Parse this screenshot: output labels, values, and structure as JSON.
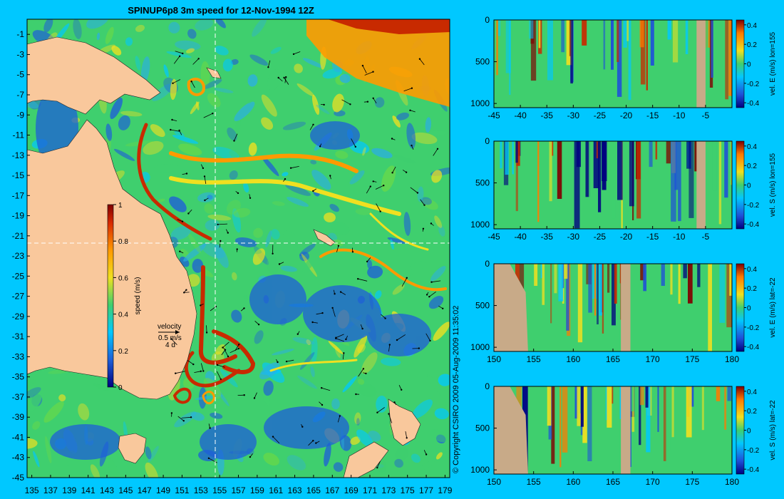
{
  "colors": {
    "background": "#00c8ff",
    "land": "#f9c89c",
    "panel_land": "#c8aa88",
    "ocean_low": "#1e5fd8",
    "ocean_mid": "#3fcf6e",
    "speed_high": "#c82a00",
    "guide_line": "#ffffff"
  },
  "chart_data": [
    {
      "type": "heatmap",
      "panel": "map",
      "title": "SPINUP6p8 3m speed for 12-Nov-1994 12Z",
      "xlabel": "",
      "ylabel": "",
      "x_ticks": [
        "135",
        "137",
        "139",
        "141",
        "143",
        "145",
        "147",
        "149",
        "151",
        "153",
        "155",
        "157",
        "159",
        "161",
        "163",
        "165",
        "167",
        "169",
        "171",
        "173",
        "175",
        "177",
        "179"
      ],
      "y_ticks": [
        "-1",
        "-3",
        "-5",
        "-7",
        "-9",
        "-11",
        "-13",
        "-15",
        "-17",
        "-19",
        "-21",
        "-23",
        "-25",
        "-27",
        "-29",
        "-31",
        "-33",
        "-35",
        "-37",
        "-39",
        "-41",
        "-43",
        "-45"
      ],
      "xlim": [
        134.5,
        179.5
      ],
      "ylim": [
        -45,
        0.5
      ],
      "section_lon": 155,
      "section_lat": -22,
      "colorbar": {
        "label": "speed (m/s)",
        "ticks": [
          "1",
          "0.8",
          "0.6",
          "0.4",
          "0.2",
          "0"
        ],
        "range": [
          0,
          1
        ]
      },
      "velocity_key": {
        "label": "velocity",
        "scale": "0.5 m/s",
        "duration": "4 d"
      }
    },
    {
      "type": "heatmap",
      "panel": "section",
      "ylabel": "vel. E (m/s) lon=155",
      "x_ticks": [
        "-45",
        "-40",
        "-35",
        "-30",
        "-25",
        "-20",
        "-15",
        "-10",
        "-5"
      ],
      "xlim": [
        -45,
        0
      ],
      "y_ticks": [
        "0",
        "500",
        "1000"
      ],
      "ylim": [
        0,
        1050
      ],
      "colorbar_ticks": [
        "0.4",
        "0.2",
        "0",
        "-0.2",
        "-0.4"
      ],
      "crange": [
        -0.45,
        0.45
      ]
    },
    {
      "type": "heatmap",
      "panel": "section",
      "ylabel": "vel. S (m/s) lon=155",
      "x_ticks": [
        "-45",
        "-40",
        "-35",
        "-30",
        "-25",
        "-20",
        "-15",
        "-10",
        "-5"
      ],
      "xlim": [
        -45,
        0
      ],
      "y_ticks": [
        "0",
        "500",
        "1000"
      ],
      "ylim": [
        0,
        1050
      ],
      "colorbar_ticks": [
        "0.4",
        "0.2",
        "0",
        "-0.2",
        "-0.4"
      ],
      "crange": [
        -0.45,
        0.45
      ]
    },
    {
      "type": "heatmap",
      "panel": "section",
      "ylabel": "vel. E (m/s) lat=-22",
      "x_ticks": [
        "150",
        "155",
        "160",
        "165",
        "170",
        "175",
        "180"
      ],
      "xlim": [
        150,
        180
      ],
      "y_ticks": [
        "0",
        "500",
        "1000"
      ],
      "ylim": [
        0,
        1050
      ],
      "colorbar_ticks": [
        "0.4",
        "0.2",
        "0",
        "-0.2",
        "-0.4"
      ],
      "crange": [
        -0.45,
        0.45
      ]
    },
    {
      "type": "heatmap",
      "panel": "section",
      "ylabel": "vel. S (m/s) lat=-22",
      "x_ticks": [
        "150",
        "155",
        "160",
        "165",
        "170",
        "175",
        "180"
      ],
      "xlim": [
        150,
        180
      ],
      "y_ticks": [
        "0",
        "500",
        "1000"
      ],
      "ylim": [
        0,
        1050
      ],
      "colorbar_ticks": [
        "0.4",
        "0.2",
        "0",
        "-0.2",
        "-0.4"
      ],
      "crange": [
        -0.45,
        0.45
      ]
    }
  ],
  "copyright": "© Copyright CSIRO 2009   05-Aug-2009 11:35:02"
}
